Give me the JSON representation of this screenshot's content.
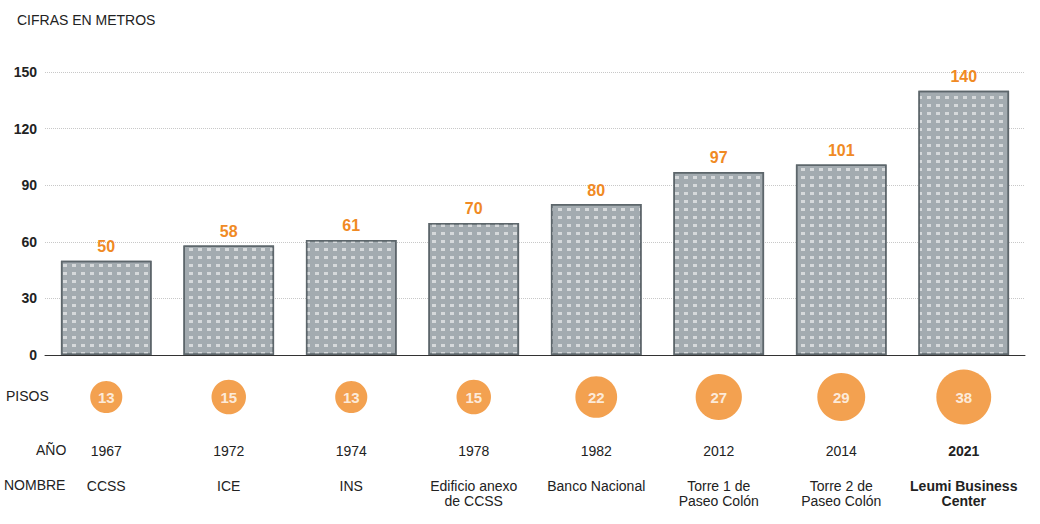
{
  "chart_data": {
    "type": "bar",
    "title": "CIFRAS EN METROS",
    "categories_label": "NOMBRE",
    "categories": [
      "CCSS",
      "ICE",
      "INS",
      "Edificio anexo de CCSS",
      "Banco Nacional",
      "Torre 1 de Paseo Colón",
      "Torre 2 de Paseo Colón",
      "Leumi Business Center"
    ],
    "values": [
      50,
      58,
      61,
      70,
      80,
      97,
      101,
      140
    ],
    "floors": {
      "label": "PISOS",
      "values": [
        13,
        15,
        13,
        15,
        22,
        27,
        29,
        38
      ]
    },
    "years": {
      "label": "AÑO",
      "values": [
        1967,
        1972,
        1974,
        1978,
        1982,
        2012,
        2014,
        2021
      ]
    },
    "color": "#a3abb0",
    "ylim": [
      0,
      150
    ],
    "yticks": [
      0,
      30,
      60,
      90,
      120,
      150
    ],
    "grid": true,
    "data_labels": true
  }
}
